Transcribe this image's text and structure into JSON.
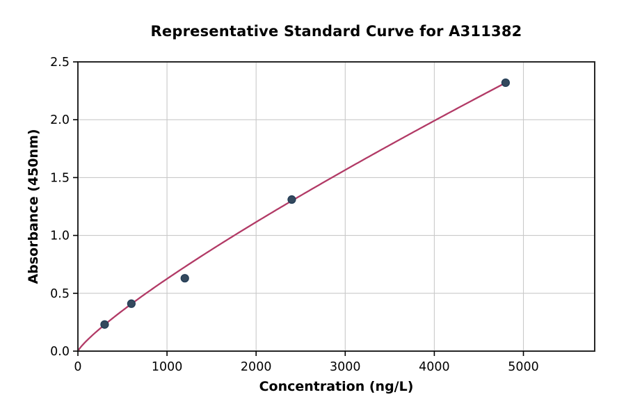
{
  "title": "Representative Standard Curve for A311382",
  "chart_data": {
    "type": "scatter",
    "title": "Representative Standard Curve for A311382",
    "xlabel": "Concentration (ng/L)",
    "ylabel": "Absorbance (450nm)",
    "xlim": [
      0,
      5800
    ],
    "ylim": [
      0,
      2.5
    ],
    "x_ticks": [
      0,
      1000,
      2000,
      3000,
      4000,
      5000
    ],
    "x_tick_labels": [
      "0",
      "1000",
      "2000",
      "3000",
      "4000",
      "5000"
    ],
    "y_ticks": [
      0,
      0.5,
      1.0,
      1.5,
      2.0,
      2.5
    ],
    "y_tick_labels": [
      "0.0",
      "0.5",
      "1.0",
      "1.5",
      "2.0",
      "2.5"
    ],
    "grid": true,
    "legend": "none",
    "points": [
      {
        "x": 300,
        "y": 0.23
      },
      {
        "x": 600,
        "y": 0.41
      },
      {
        "x": 1200,
        "y": 0.63
      },
      {
        "x": 2400,
        "y": 1.31
      },
      {
        "x": 4800,
        "y": 2.32
      }
    ],
    "fit_curve": {
      "model": "power",
      "a": 0.00194,
      "b": 0.836,
      "x_start": 0,
      "x_end": 4800
    },
    "colors": {
      "curve": "#b23a66",
      "point_fill": "#34495e",
      "point_edge": "#203b55",
      "grid": "#c9c9c9",
      "spine": "#262626",
      "tick": "#000000",
      "text": "#000000",
      "background": "#ffffff"
    }
  }
}
